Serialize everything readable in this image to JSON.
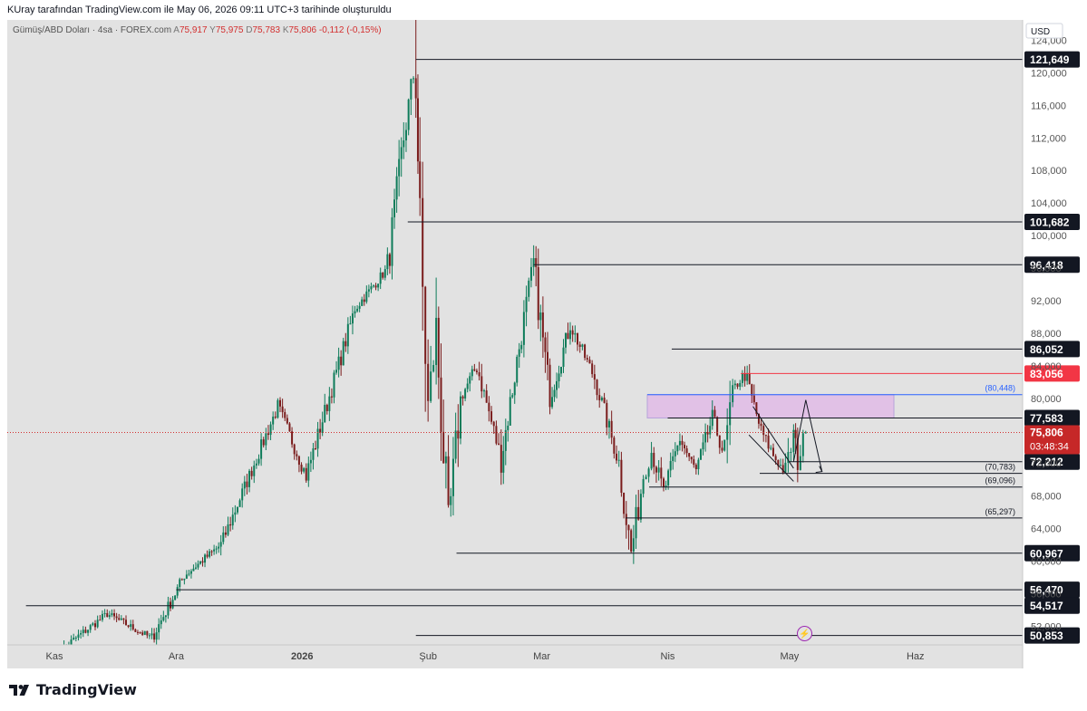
{
  "header": {
    "credit": "KUray tarafından TradingView.com ile May 06, 2026 09:11 UTC+3 tarihinde oluşturuldu"
  },
  "legend": {
    "symbol": "Gümüş/ABD Doları · 4sa · FOREX.com",
    "open_label": "A",
    "open": "75,917",
    "high_label": "Y",
    "high": "75,975",
    "low_label": "D",
    "low": "75,783",
    "close_label": "K",
    "close": "75,806",
    "change": "-0,112 (-0,15%)"
  },
  "currency": "USD",
  "brand": "TradingView",
  "chart_data": {
    "type": "candlestick",
    "title": "",
    "x_labels": [
      "Kas",
      "Ara",
      "2026",
      "Şub",
      "Mar",
      "Nis",
      "May",
      "Haz"
    ],
    "y_ticks": [
      52000,
      56000,
      60000,
      64000,
      68000,
      72000,
      76000,
      80000,
      84000,
      88000,
      92000,
      96000,
      100000,
      104000,
      108000,
      112000,
      116000,
      120000,
      124000
    ],
    "y_tick_labels": [
      "52,000",
      "56,000",
      "60,000",
      "64,000",
      "68,000",
      "72,000",
      "76,000",
      "80,000",
      "84,000",
      "88,000",
      "92,000",
      "96,000",
      "100,000",
      "104,000",
      "108,000",
      "112,000",
      "116,000",
      "120,000",
      "124,000"
    ],
    "ylim": [
      49700,
      126500
    ],
    "current_price": 75806,
    "current_price_label": "75,806",
    "countdown": "03:48:34",
    "horizontal_levels": [
      {
        "value": 121649,
        "label": "121,649",
        "start": "2026-01-29",
        "color": "#131722"
      },
      {
        "value": 101682,
        "label": "101,682",
        "start": "2026-01-27",
        "color": "#131722"
      },
      {
        "value": 96418,
        "label": "96,418",
        "start": "2026-02-27",
        "color": "#131722"
      },
      {
        "value": 86052,
        "label": "86,052",
        "start": "2026-04-02",
        "color": "#131722"
      },
      {
        "value": 83056,
        "label": "83,056",
        "start": "2026-04-19",
        "color": "#f23645"
      },
      {
        "value": 77583,
        "label": "77,583",
        "start": "2026-04-01",
        "color": "#131722"
      },
      {
        "value": 72212,
        "label": "72,212",
        "start": "2026-05-01",
        "color": "#131722"
      },
      {
        "value": 60967,
        "label": "60,967",
        "start": "2026-02-08",
        "color": "#131722"
      },
      {
        "value": 56470,
        "label": "56,470",
        "start": "2025-12-01",
        "color": "#131722"
      },
      {
        "value": 54517,
        "label": "54,517",
        "start": "2025-10-25",
        "color": "#131722"
      },
      {
        "value": 50853,
        "label": "50,853",
        "start": "2026-01-29",
        "color": "#131722"
      }
    ],
    "annotated_levels": [
      {
        "value": 80448,
        "label": "(80,448)",
        "color": "#2962ff"
      },
      {
        "value": 70783,
        "label": "(70,783)",
        "color": "#131722"
      },
      {
        "value": 69096,
        "label": "(69,096)",
        "color": "#131722"
      },
      {
        "value": 65297,
        "label": "(65,297)",
        "color": "#131722"
      }
    ],
    "zone": {
      "from": 77583,
      "to": 80448,
      "color": "#e1bee7"
    },
    "key_points": [
      {
        "date": "2025-11-01",
        "price": 48500
      },
      {
        "date": "2025-11-14",
        "price": 53500
      },
      {
        "date": "2025-11-25",
        "price": 50500
      },
      {
        "date": "2025-12-03",
        "price": 58200
      },
      {
        "date": "2025-12-12",
        "price": 62000
      },
      {
        "date": "2025-12-26",
        "price": 79000
      },
      {
        "date": "2026-01-02",
        "price": 70500
      },
      {
        "date": "2026-01-14",
        "price": 91000
      },
      {
        "date": "2026-01-22",
        "price": 96000
      },
      {
        "date": "2026-01-26",
        "price": 112000
      },
      {
        "date": "2026-01-29",
        "price": 121649
      },
      {
        "date": "2026-01-30",
        "price": 100000
      },
      {
        "date": "2026-02-01",
        "price": 79000
      },
      {
        "date": "2026-02-03",
        "price": 88000
      },
      {
        "date": "2026-02-06",
        "price": 64000
      },
      {
        "date": "2026-02-09",
        "price": 80000
      },
      {
        "date": "2026-02-13",
        "price": 84000
      },
      {
        "date": "2026-02-19",
        "price": 72500
      },
      {
        "date": "2026-02-24",
        "price": 88000
      },
      {
        "date": "2026-02-27",
        "price": 96418
      },
      {
        "date": "2026-03-03",
        "price": 80000
      },
      {
        "date": "2026-03-08",
        "price": 89000
      },
      {
        "date": "2026-03-14",
        "price": 82500
      },
      {
        "date": "2026-03-20",
        "price": 72000
      },
      {
        "date": "2026-03-23",
        "price": 60967
      },
      {
        "date": "2026-03-26",
        "price": 70500
      },
      {
        "date": "2026-03-28",
        "price": 73500
      },
      {
        "date": "2026-03-31",
        "price": 68500
      },
      {
        "date": "2026-04-04",
        "price": 75000
      },
      {
        "date": "2026-04-08",
        "price": 71000
      },
      {
        "date": "2026-04-12",
        "price": 77583
      },
      {
        "date": "2026-04-15",
        "price": 73000
      },
      {
        "date": "2026-04-17",
        "price": 81000
      },
      {
        "date": "2026-04-20",
        "price": 83056
      },
      {
        "date": "2026-04-24",
        "price": 76000
      },
      {
        "date": "2026-04-27",
        "price": 73000
      },
      {
        "date": "2026-04-30",
        "price": 70800
      },
      {
        "date": "2026-05-02",
        "price": 75500
      },
      {
        "date": "2026-05-03",
        "price": 72200
      },
      {
        "date": "2026-05-05",
        "price": 75806
      }
    ],
    "projection": [
      {
        "date": "2026-05-02",
        "price": 72212
      },
      {
        "date": "2026-05-05",
        "price": 79800
      },
      {
        "date": "2026-05-09",
        "price": 71000
      }
    ],
    "channel": {
      "upper": [
        {
          "date": "2026-04-22",
          "price": 79000
        },
        {
          "date": "2026-05-02",
          "price": 71400
        }
      ],
      "lower": [
        {
          "date": "2026-04-21",
          "price": 75500
        },
        {
          "date": "2026-05-02",
          "price": 69800
        }
      ]
    },
    "grid": false,
    "axis_position": "right"
  }
}
